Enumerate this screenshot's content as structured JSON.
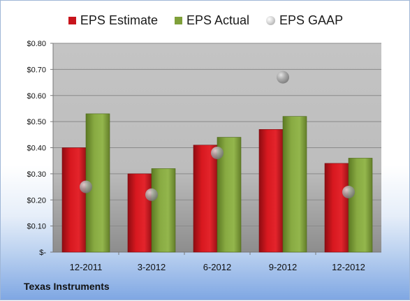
{
  "legend": {
    "estimate": "EPS Estimate",
    "actual": "EPS Actual",
    "gaap": "EPS GAAP"
  },
  "company": "Texas Instruments",
  "colors": {
    "estimate": "#c8141c",
    "actual": "#7fa03a",
    "gaap": "#a0a0a0",
    "plot_bg": "#c0c0c0"
  },
  "chart_data": {
    "type": "bar",
    "categories": [
      "12-2011",
      "3-2012",
      "6-2012",
      "9-2012",
      "12-2012"
    ],
    "series": [
      {
        "name": "EPS Estimate",
        "values": [
          0.4,
          0.3,
          0.41,
          0.47,
          0.34
        ]
      },
      {
        "name": "EPS Actual",
        "values": [
          0.53,
          0.32,
          0.44,
          0.52,
          0.36
        ]
      },
      {
        "name": "EPS GAAP",
        "type": "scatter",
        "values": [
          0.25,
          0.22,
          0.38,
          0.67,
          0.23
        ]
      }
    ],
    "yticks": [
      "$-",
      "$0.10",
      "$0.20",
      "$0.30",
      "$0.40",
      "$0.50",
      "$0.60",
      "$0.70",
      "$0.80"
    ],
    "ylim": [
      0,
      0.8
    ],
    "grid": true,
    "legend_position": "top"
  }
}
